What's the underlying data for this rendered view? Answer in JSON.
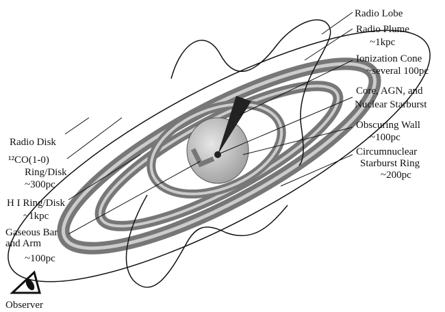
{
  "labels": [
    {
      "lines": [
        "Radio Lobe"
      ]
    },
    {
      "lines": [
        "Radio Plume",
        "~1kpc"
      ]
    },
    {
      "lines": [
        "Ionization Cone",
        "~several 100pc"
      ]
    },
    {
      "lines": [
        "Core, AGN, and",
        "Nuclear Starburst"
      ]
    },
    {
      "lines": [
        "Obscuring Wall",
        "~100pc"
      ]
    },
    {
      "lines": [
        "Circumnuclear",
        "Starburst Ring",
        "~200pc"
      ]
    },
    {
      "lines": [
        "Radio Disk"
      ]
    },
    {
      "lines": [
        "¹²CO(1-0)",
        "Ring/Disk",
        "~300pc"
      ]
    },
    {
      "lines": [
        "H I Ring/Disk",
        "~1kpc"
      ]
    },
    {
      "lines": [
        "Gaseous Bar",
        "and Arm",
        "~100pc"
      ]
    },
    {
      "lines": [
        "Observer"
      ]
    }
  ]
}
